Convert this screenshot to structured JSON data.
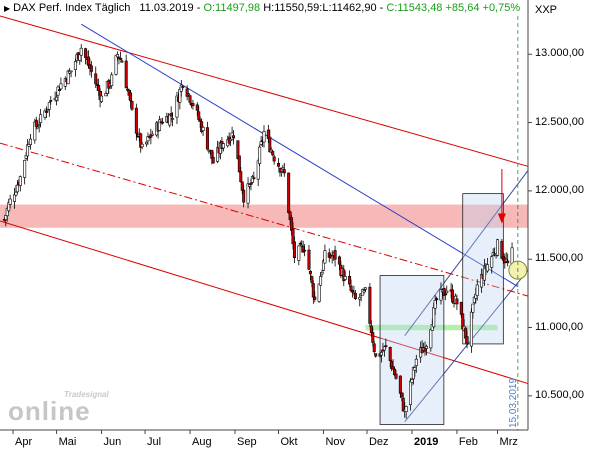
{
  "header": {
    "title": "DAX Perf. Index Täglich",
    "date": "11.03.2019",
    "open": "O:11497,98",
    "high": "H:11550,59",
    "low": "L:11462,90",
    "close": "C:11543,48",
    "change": "+85,64",
    "change_pct": "+0,75%",
    "symbol": "XXP"
  },
  "logo": {
    "brand": "Tradesignal",
    "text": "online"
  },
  "marker_date": "15.03.2019",
  "colors": {
    "candle_up": "#ffffff",
    "candle_down": "#cc0000",
    "channel": "#dd0000",
    "trendline": "#2a3ecf",
    "resistance_band": "#f4a0a0",
    "support_band": "#a8f0a0",
    "box": "#6d7fb0",
    "grid": "#dddddd"
  },
  "chart_data": {
    "type": "candlestick",
    "title": "DAX Perf. Index Täglich",
    "x_tick_labels": [
      "Apr",
      "Mai",
      "Jun",
      "Jul",
      "Aug",
      "Sep",
      "Okt",
      "Nov",
      "Dez",
      "2019",
      "Feb",
      "Mrz"
    ],
    "y_tick_labels": [
      "10.500,00",
      "11.000,00",
      "11.500,00",
      "12.000,00",
      "12.500,00",
      "13.000,00"
    ],
    "y_ticks": [
      10500,
      11000,
      11500,
      12000,
      12500,
      13000
    ],
    "xlim": [
      "2018-03-23",
      "2019-03-22"
    ],
    "ylim": [
      10250,
      13280
    ],
    "grid": false,
    "close_path": [
      [
        "2018-03-26",
        11790
      ],
      [
        "2018-03-29",
        11900
      ],
      [
        "2018-04-06",
        12100
      ],
      [
        "2018-04-13",
        12420
      ],
      [
        "2018-04-20",
        12520
      ],
      [
        "2018-04-27",
        12660
      ],
      [
        "2018-05-04",
        12780
      ],
      [
        "2018-05-11",
        12880
      ],
      [
        "2018-05-18",
        13050
      ],
      [
        "2018-05-25",
        12870
      ],
      [
        "2018-06-01",
        12680
      ],
      [
        "2018-06-08",
        12820
      ],
      [
        "2018-06-12",
        13000
      ],
      [
        "2018-06-15",
        12950
      ],
      [
        "2018-06-22",
        12570
      ],
      [
        "2018-06-29",
        12300
      ],
      [
        "2018-07-06",
        12420
      ],
      [
        "2018-07-13",
        12520
      ],
      [
        "2018-07-20",
        12560
      ],
      [
        "2018-07-27",
        12800
      ],
      [
        "2018-08-03",
        12640
      ],
      [
        "2018-08-10",
        12440
      ],
      [
        "2018-08-17",
        12210
      ],
      [
        "2018-08-24",
        12360
      ],
      [
        "2018-08-31",
        12420
      ],
      [
        "2018-09-07",
        11960
      ],
      [
        "2018-09-14",
        12080
      ],
      [
        "2018-09-21",
        12430
      ],
      [
        "2018-09-28",
        12250
      ],
      [
        "2018-10-05",
        12120
      ],
      [
        "2018-10-12",
        11520
      ],
      [
        "2018-10-19",
        11600
      ],
      [
        "2018-10-26",
        11200
      ],
      [
        "2018-11-02",
        11520
      ],
      [
        "2018-11-09",
        11520
      ],
      [
        "2018-11-16",
        11350
      ],
      [
        "2018-11-23",
        11200
      ],
      [
        "2018-11-30",
        11250
      ],
      [
        "2018-12-07",
        10780
      ],
      [
        "2018-12-14",
        10850
      ],
      [
        "2018-12-21",
        10630
      ],
      [
        "2018-12-27",
        10380
      ],
      [
        "2019-01-04",
        10770
      ],
      [
        "2019-01-11",
        10890
      ],
      [
        "2019-01-18",
        11200
      ],
      [
        "2019-01-25",
        11280
      ],
      [
        "2019-02-01",
        11180
      ],
      [
        "2019-02-08",
        10900
      ],
      [
        "2019-02-15",
        11300
      ],
      [
        "2019-02-22",
        11460
      ],
      [
        "2019-03-01",
        11600
      ],
      [
        "2019-03-08",
        11460
      ],
      [
        "2019-03-11",
        11543
      ]
    ],
    "lines": [
      {
        "kind": "upper-channel",
        "from": [
          "2018-03-23",
          13280
        ],
        "to": [
          "2019-03-22",
          12180
        ]
      },
      {
        "kind": "middle-channel-dashdot",
        "from": [
          "2018-03-23",
          12350
        ],
        "to": [
          "2019-03-22",
          11230
        ]
      },
      {
        "kind": "lower-channel",
        "from": [
          "2018-03-23",
          11780
        ],
        "to": [
          "2019-03-22",
          10590
        ]
      },
      {
        "kind": "downtrend-blue",
        "from": [
          "2018-05-18",
          13220
        ],
        "to": [
          "2019-03-15",
          11300
        ]
      },
      {
        "kind": "uptrend-channel",
        "from": [
          "2018-12-27",
          10310
        ],
        "to": [
          "2019-03-22",
          11420
        ]
      },
      {
        "kind": "uptrend-channel",
        "from": [
          "2018-12-27",
          10940
        ],
        "to": [
          "2019-03-22",
          12150
        ]
      }
    ],
    "bands": [
      {
        "kind": "resistance",
        "y": [
          11730,
          11900
        ],
        "fill": "#f4a0a0"
      },
      {
        "kind": "support",
        "y": [
          10980,
          11020
        ],
        "x": [
          "2018-11-30",
          "2019-03-01"
        ],
        "fill": "#a8f0a0"
      }
    ],
    "boxes": [
      {
        "x": [
          "2018-12-10",
          "2019-01-23"
        ],
        "y": [
          10290,
          11380
        ]
      },
      {
        "x": [
          "2019-02-05",
          "2019-03-05"
        ],
        "y": [
          10880,
          11980
        ]
      }
    ],
    "markers": [
      {
        "kind": "arrow-down",
        "x": "2019-03-04",
        "from": 12160,
        "to": 11820
      },
      {
        "kind": "circle",
        "x": "2019-03-15",
        "y": 11420
      },
      {
        "kind": "vertical-dashed",
        "x": "2019-03-15"
      }
    ]
  }
}
